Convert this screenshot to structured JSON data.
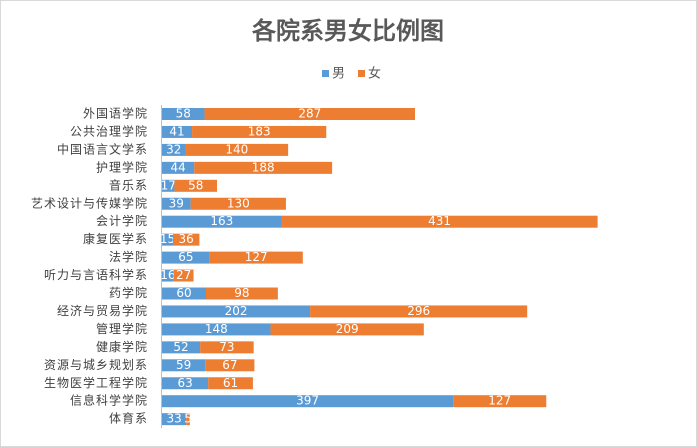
{
  "chart_data": {
    "type": "stacked-bar-horizontal",
    "title": "各院系男女比例图",
    "categories": [
      "外国语学院",
      "公共治理学院",
      "中国语言文学系",
      "护理学院",
      "音乐系",
      "艺术设计与传媒学院",
      "会计学院",
      "康复医学系",
      "法学院",
      "听力与言语科学系",
      "药学院",
      "经济与贸易学院",
      "管理学院",
      "健康学院",
      "资源与城乡规划系",
      "生物医学工程学院",
      "信息科学学院",
      "体育系"
    ],
    "series": [
      {
        "name": "男",
        "color": "#5b9bd5",
        "values": [
          58,
          41,
          32,
          44,
          17,
          39,
          163,
          15,
          65,
          16,
          60,
          202,
          148,
          52,
          59,
          63,
          397,
          33
        ]
      },
      {
        "name": "女",
        "color": "#ed7d31",
        "values": [
          287,
          183,
          140,
          188,
          58,
          130,
          431,
          36,
          127,
          27,
          98,
          296,
          209,
          73,
          67,
          61,
          127,
          5
        ]
      }
    ],
    "xlim": [
      0,
      720
    ],
    "legend": "top"
  }
}
